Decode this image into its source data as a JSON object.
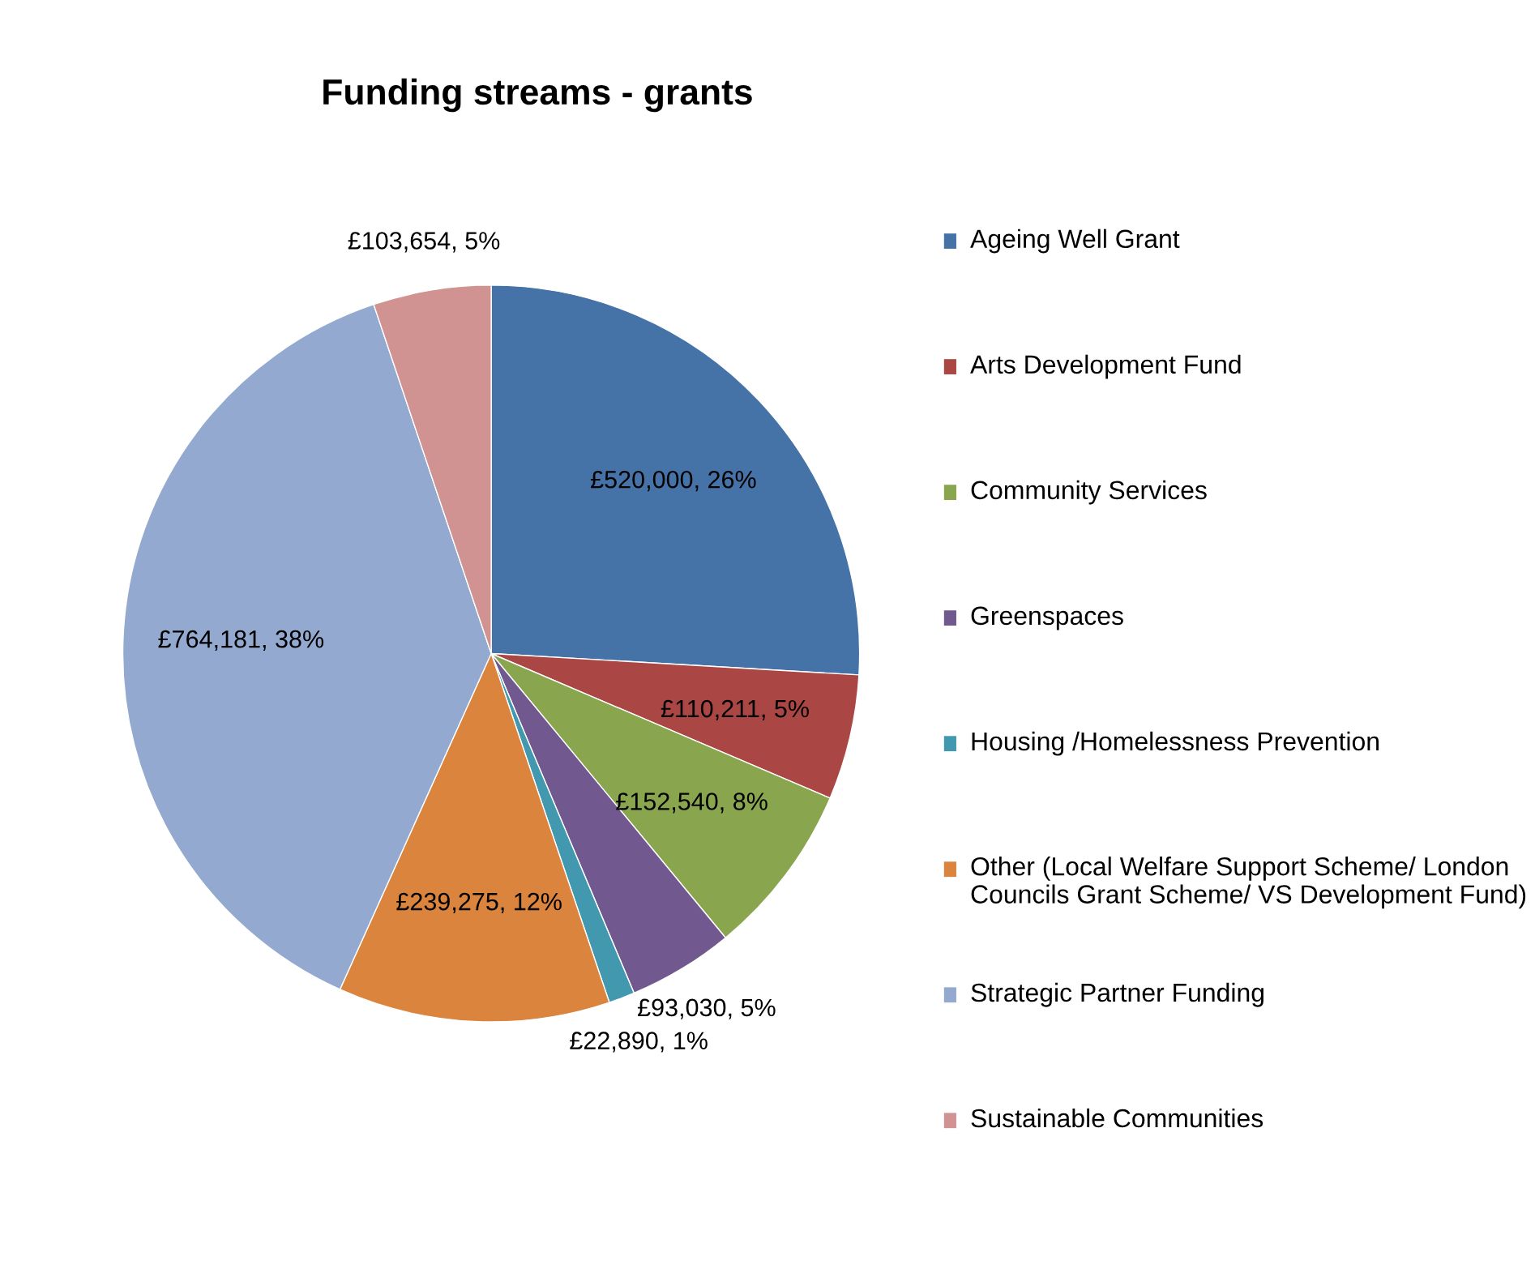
{
  "chart_data": {
    "type": "pie",
    "title": "Funding streams - grants",
    "categories": [
      "Ageing Well Grant",
      "Arts Development Fund",
      "Community Services",
      "Greenspaces",
      "Housing /Homelessness Prevention",
      "Other (Local Welfare Support Scheme/ London Councils Grant Scheme/ VS Development Fund)",
      "Strategic Partner Funding",
      "Sustainable Communities"
    ],
    "values": [
      520000,
      110211,
      152540,
      93030,
      22890,
      239275,
      764181,
      103654
    ],
    "colors": [
      "#4572a7",
      "#aa4643",
      "#89a54e",
      "#71588f",
      "#4198af",
      "#db843d",
      "#93a9cf",
      "#d19392"
    ],
    "value_labels": [
      "£520,000, 26%",
      "£110,211, 5%",
      "£152,540, 8%",
      "£93,030, 5%",
      "£22,890, 1%",
      "£239,275, 12%",
      "£764,181, 38%",
      "£103,654, 5%"
    ],
    "legend": "right"
  }
}
